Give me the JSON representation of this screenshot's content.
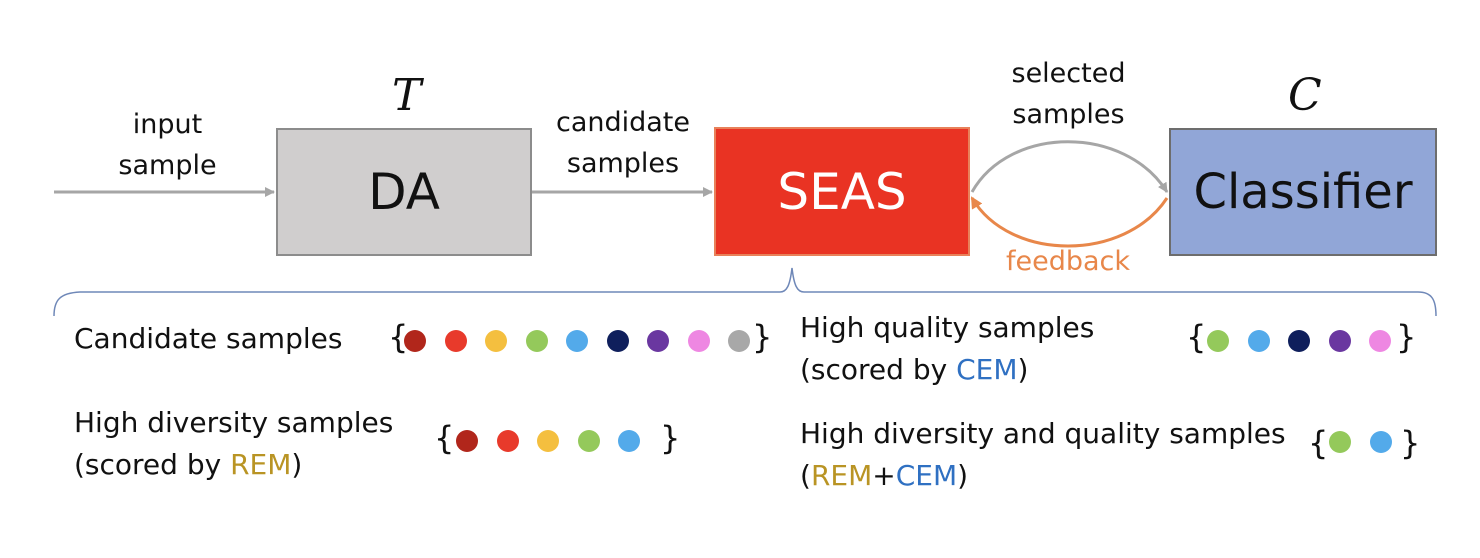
{
  "flow": {
    "input": [
      "input",
      "sample"
    ],
    "candidate": [
      "candidate",
      "samples"
    ],
    "selected": [
      "selected",
      "samples"
    ],
    "feedback": "feedback",
    "symbol_t": "T",
    "symbol_c": "C"
  },
  "boxes": {
    "da": "DA",
    "seas": "SEAS",
    "classifier": "Classifier"
  },
  "legend": {
    "candidate": {
      "label": "Candidate samples",
      "dots": [
        "#b1261b",
        "#e83a2b",
        "#f4bf3f",
        "#94c95b",
        "#53aaea",
        "#0f1f5c",
        "#6a37a0",
        "#ee87e2",
        "#a8a8a8"
      ]
    },
    "high_quality": {
      "line1": "High quality samples",
      "line2_pre": "(scored by ",
      "line2_tag": "CEM",
      "line2_post": ")",
      "dots": [
        "#94c95b",
        "#53aaea",
        "#0f1f5c",
        "#6a37a0",
        "#ee87e2"
      ]
    },
    "high_diversity": {
      "line1": "High diversity samples",
      "line2_pre": "(scored by ",
      "line2_tag": "REM",
      "line2_post": ")",
      "dots": [
        "#b1261b",
        "#e83a2b",
        "#f4bf3f",
        "#94c95b",
        "#53aaea"
      ]
    },
    "high_both": {
      "line1": "High diversity and quality samples",
      "line2_open": "(",
      "line2_rem": "REM",
      "line2_plus": "+",
      "line2_cem": "CEM",
      "line2_close": ")",
      "dots": [
        "#94c95b",
        "#53aaea"
      ]
    },
    "brace_open": "{",
    "brace_close": "}"
  },
  "colors": {
    "da_fill": "#d0cece",
    "seas_fill": "#e93323",
    "classifier_fill": "#91a6d7",
    "arrow_gray": "#a6a6a6",
    "feedback_orange": "#e8874a",
    "rem": "#b99424",
    "cem": "#2f70c2"
  }
}
